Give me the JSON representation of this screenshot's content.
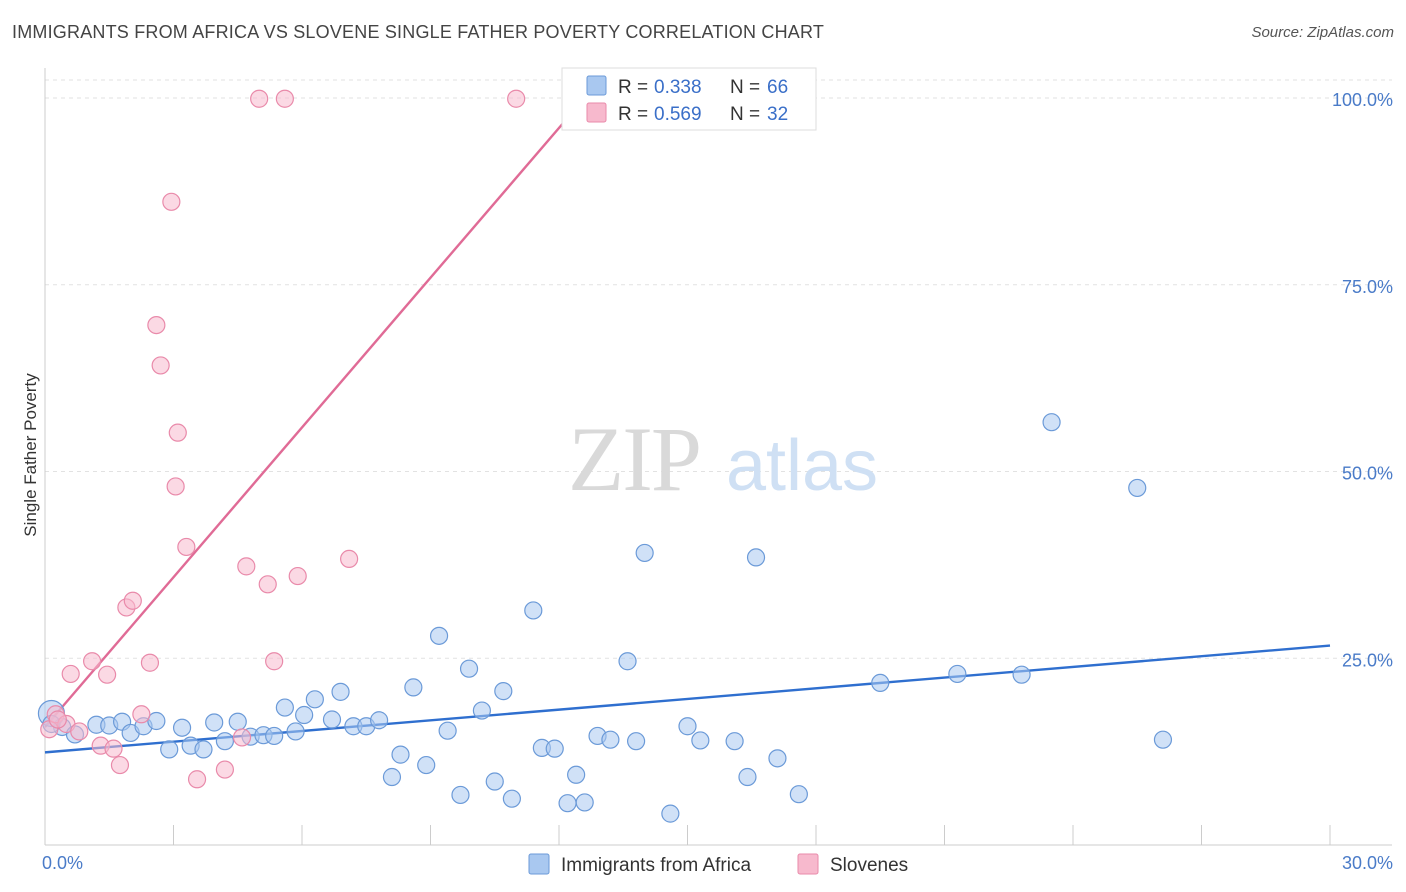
{
  "header": {
    "title": "IMMIGRANTS FROM AFRICA VS SLOVENE SINGLE FATHER POVERTY CORRELATION CHART",
    "source": "Source: ZipAtlas.com"
  },
  "watermark": {
    "zip": "ZIP",
    "atlas": "atlas"
  },
  "chart_data": {
    "type": "scatter",
    "xlabel": "",
    "ylabel": "Single Father Poverty",
    "xlim": [
      0,
      30
    ],
    "ylim": [
      0,
      100
    ],
    "x_tick_labels": [
      "0.0%",
      "30.0%"
    ],
    "y_ticks": [
      25,
      50,
      75,
      100
    ],
    "y_tick_labels": [
      "25.0%",
      "50.0%",
      "75.0%",
      "100.0%"
    ],
    "grid": "horizontal dashed",
    "legend_position": "top-center",
    "series": [
      {
        "name": "Immigrants from Africa",
        "color": "#a9c8f0",
        "stroke": "#6b9ad8",
        "line_color": "#2f6fcf",
        "R": "0.338",
        "N": "66",
        "trend": [
          [
            0,
            12.4
          ],
          [
            30,
            26.7
          ]
        ],
        "points": [
          [
            0.15,
            17.6
          ],
          [
            0.4,
            15.8
          ],
          [
            0.7,
            14.8
          ],
          [
            1.2,
            16.1
          ],
          [
            1.5,
            16.0
          ],
          [
            1.8,
            16.5
          ],
          [
            2.0,
            15.0
          ],
          [
            2.3,
            15.9
          ],
          [
            2.6,
            16.6
          ],
          [
            2.9,
            12.8
          ],
          [
            3.2,
            15.7
          ],
          [
            3.4,
            13.3
          ],
          [
            3.7,
            12.8
          ],
          [
            3.95,
            16.4
          ],
          [
            4.2,
            13.9
          ],
          [
            4.5,
            16.5
          ],
          [
            4.8,
            14.5
          ],
          [
            5.1,
            14.7
          ],
          [
            5.35,
            14.6
          ],
          [
            5.6,
            18.4
          ],
          [
            5.85,
            15.2
          ],
          [
            6.05,
            17.4
          ],
          [
            6.3,
            19.5
          ],
          [
            6.7,
            16.8
          ],
          [
            6.9,
            20.5
          ],
          [
            7.2,
            15.9
          ],
          [
            7.5,
            15.9
          ],
          [
            7.8,
            16.7
          ],
          [
            8.1,
            9.1
          ],
          [
            8.3,
            12.1
          ],
          [
            8.6,
            21.1
          ],
          [
            8.9,
            10.7
          ],
          [
            9.2,
            28.0
          ],
          [
            9.4,
            15.3
          ],
          [
            9.7,
            6.7
          ],
          [
            9.9,
            23.6
          ],
          [
            10.2,
            18.0
          ],
          [
            10.5,
            8.5
          ],
          [
            10.7,
            20.6
          ],
          [
            10.9,
            6.2
          ],
          [
            11.4,
            31.4
          ],
          [
            11.6,
            13.0
          ],
          [
            11.9,
            12.9
          ],
          [
            12.2,
            5.6
          ],
          [
            12.4,
            9.4
          ],
          [
            12.6,
            5.7
          ],
          [
            12.9,
            14.6
          ],
          [
            13.2,
            14.1
          ],
          [
            13.6,
            24.6
          ],
          [
            13.8,
            13.9
          ],
          [
            14.0,
            39.1
          ],
          [
            14.6,
            4.2
          ],
          [
            15.0,
            15.9
          ],
          [
            15.3,
            14.0
          ],
          [
            16.1,
            13.9
          ],
          [
            16.4,
            9.1
          ],
          [
            16.6,
            38.5
          ],
          [
            17.1,
            11.6
          ],
          [
            17.6,
            6.8
          ],
          [
            19.5,
            21.7
          ],
          [
            21.3,
            22.9
          ],
          [
            22.8,
            22.8
          ],
          [
            23.5,
            56.6
          ],
          [
            25.5,
            47.8
          ],
          [
            26.1,
            14.1
          ],
          [
            0.15,
            16.2
          ]
        ]
      },
      {
        "name": "Slovenes",
        "color": "#f7b9cd",
        "stroke": "#e98aaa",
        "line_color": "#e06b96",
        "R": "0.569",
        "N": "32",
        "trend": [
          [
            0,
            15.8
          ],
          [
            12.6,
            100
          ]
        ],
        "points": [
          [
            0.1,
            15.5
          ],
          [
            0.25,
            17.5
          ],
          [
            0.5,
            16.2
          ],
          [
            0.6,
            22.9
          ],
          [
            0.8,
            15.2
          ],
          [
            1.1,
            24.6
          ],
          [
            1.3,
            13.3
          ],
          [
            1.45,
            22.8
          ],
          [
            1.6,
            12.9
          ],
          [
            1.75,
            10.7
          ],
          [
            1.9,
            31.8
          ],
          [
            2.05,
            32.7
          ],
          [
            2.25,
            17.5
          ],
          [
            2.45,
            24.4
          ],
          [
            2.6,
            69.6
          ],
          [
            2.7,
            64.2
          ],
          [
            2.95,
            86.1
          ],
          [
            3.05,
            48.0
          ],
          [
            3.1,
            55.2
          ],
          [
            3.3,
            39.9
          ],
          [
            3.55,
            8.8
          ],
          [
            4.2,
            10.1
          ],
          [
            4.6,
            14.4
          ],
          [
            4.7,
            37.3
          ],
          [
            5.0,
            99.9
          ],
          [
            5.2,
            34.9
          ],
          [
            5.35,
            24.6
          ],
          [
            5.6,
            99.9
          ],
          [
            5.9,
            36.0
          ],
          [
            7.1,
            38.3
          ],
          [
            11.0,
            99.9
          ],
          [
            0.3,
            16.8
          ]
        ]
      }
    ]
  }
}
